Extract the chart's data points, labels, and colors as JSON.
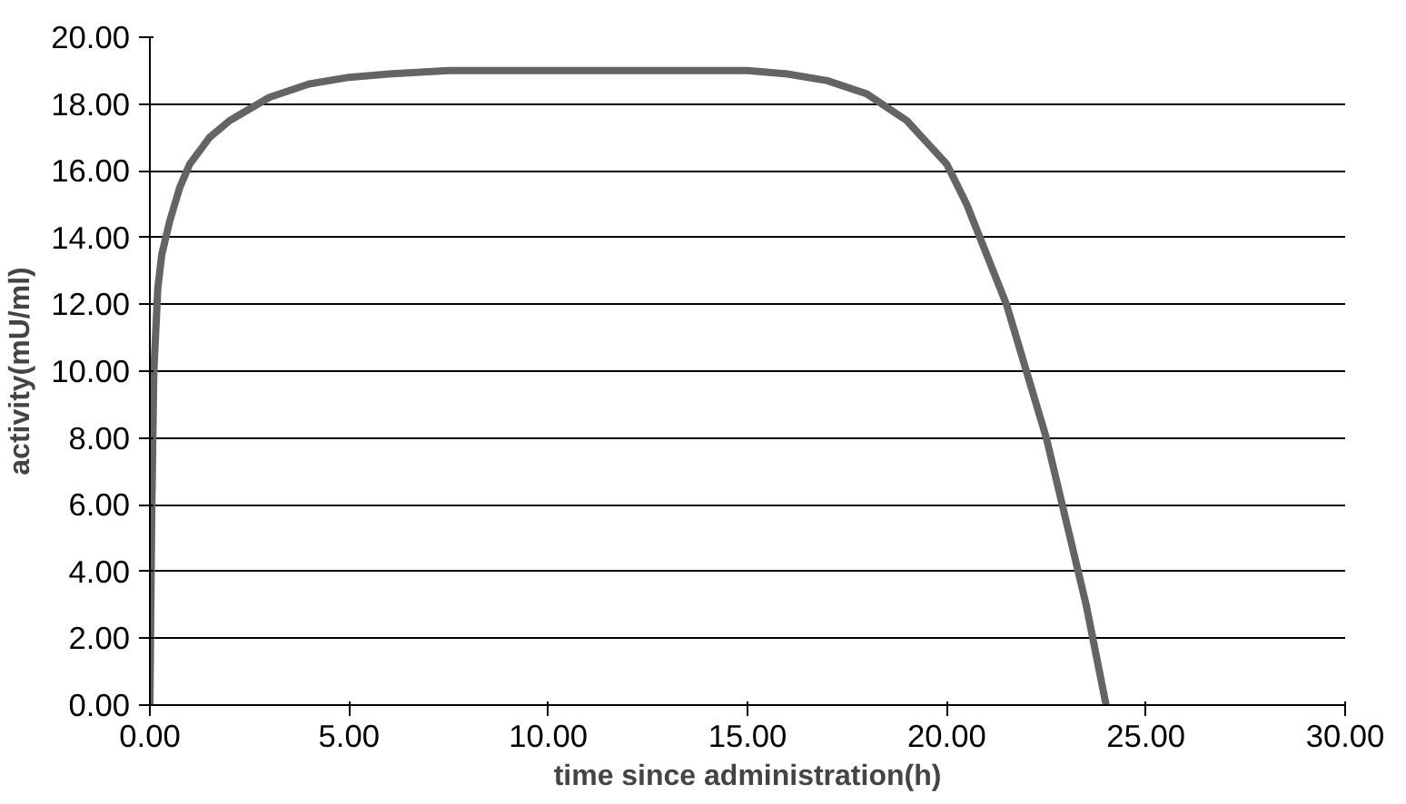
{
  "chart_data": {
    "type": "line",
    "xlabel": "time since administration(h)",
    "ylabel": "activity(mU/ml)",
    "xlim": [
      0,
      30
    ],
    "xticks": [
      {
        "value": 0,
        "label": "0.00"
      },
      {
        "value": 5,
        "label": "5.00"
      },
      {
        "value": 10,
        "label": "10.00"
      },
      {
        "value": 15,
        "label": "15.00"
      },
      {
        "value": 20,
        "label": "20.00"
      },
      {
        "value": 25,
        "label": "25.00"
      },
      {
        "value": 30,
        "label": "30.00"
      }
    ],
    "ylim": [
      0,
      20
    ],
    "yticks": [
      {
        "value": 0,
        "label": "0.00"
      },
      {
        "value": 2,
        "label": "2.00"
      },
      {
        "value": 4,
        "label": "4.00"
      },
      {
        "value": 6,
        "label": "6.00"
      },
      {
        "value": 8,
        "label": "8.00"
      },
      {
        "value": 10,
        "label": "10.00"
      },
      {
        "value": 12,
        "label": "12.00"
      },
      {
        "value": 14,
        "label": "14.00"
      },
      {
        "value": 16,
        "label": "16.00"
      },
      {
        "value": 18,
        "label": "18.00"
      },
      {
        "value": 20,
        "label": "20.00"
      }
    ],
    "grid": "y",
    "marker": "none",
    "line_style": "solid",
    "series": [
      {
        "color": "#646464",
        "x": [
          0,
          0.05,
          0.1,
          0.2,
          0.3,
          0.5,
          0.75,
          1,
          1.5,
          2,
          3,
          4,
          5,
          6,
          7.5,
          10,
          12.5,
          15,
          16,
          17,
          18,
          19,
          20,
          20.5,
          21,
          21.5,
          22,
          22.5,
          23,
          23.5,
          24
        ],
        "values": [
          0,
          6,
          10,
          12.5,
          13.5,
          14.5,
          15.5,
          16.2,
          17,
          17.5,
          18.2,
          18.6,
          18.8,
          18.9,
          19,
          19,
          19,
          19,
          18.9,
          18.7,
          18.3,
          17.5,
          16.2,
          15,
          13.5,
          12,
          10,
          8,
          5.5,
          3,
          0
        ]
      }
    ]
  }
}
